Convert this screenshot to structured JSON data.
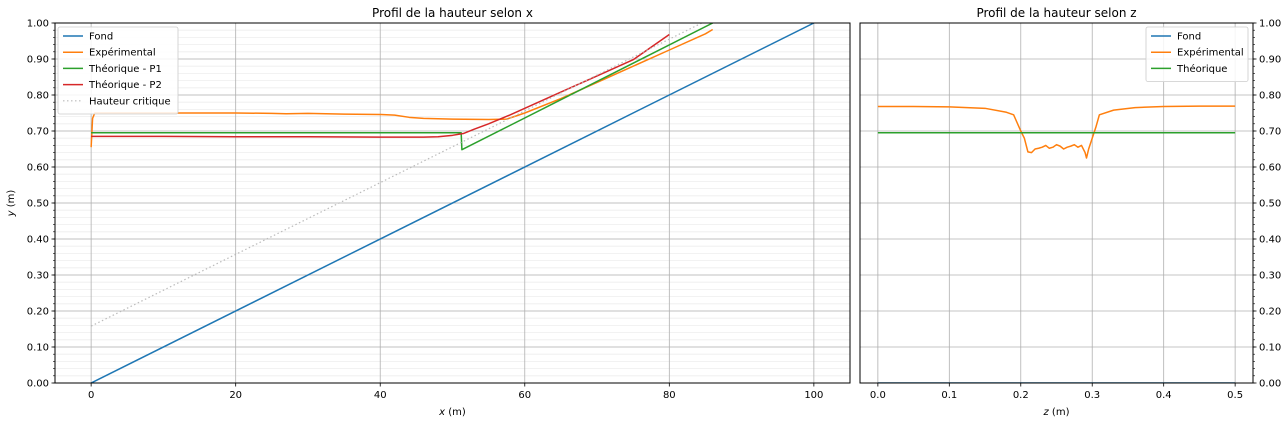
{
  "chart_data": [
    {
      "type": "line",
      "title": "Profil de la hauteur selon x",
      "xlabel": "x (m)",
      "ylabel": "y (m)",
      "xlim": [
        -5,
        105
      ],
      "ylim": [
        0,
        1
      ],
      "x_ticks": [
        0,
        20,
        40,
        60,
        80,
        100
      ],
      "y_ticks": [
        "0.00",
        "0.10",
        "0.20",
        "0.30",
        "0.40",
        "0.50",
        "0.60",
        "0.70",
        "0.80",
        "0.90",
        "1.00"
      ],
      "grid": true,
      "minor_grid": true,
      "legend_position": "top-left",
      "series": [
        {
          "name": "Fond",
          "color": "#1f77b4",
          "style": "solid",
          "points": [
            [
              0,
              0.0
            ],
            [
              100,
              1.0
            ]
          ]
        },
        {
          "name": "Expérimental",
          "color": "#ff7f0e",
          "style": "solid",
          "points": [
            [
              0,
              0.655
            ],
            [
              0.2,
              0.735
            ],
            [
              0.5,
              0.75
            ],
            [
              5,
              0.75
            ],
            [
              10,
              0.75
            ],
            [
              15,
              0.75
            ],
            [
              20,
              0.75
            ],
            [
              25,
              0.749
            ],
            [
              27,
              0.748
            ],
            [
              30,
              0.749
            ],
            [
              35,
              0.747
            ],
            [
              40,
              0.746
            ],
            [
              42,
              0.744
            ],
            [
              44,
              0.738
            ],
            [
              46,
              0.735
            ],
            [
              50,
              0.733
            ],
            [
              55,
              0.732
            ],
            [
              57.5,
              0.733
            ],
            [
              60,
              0.75
            ],
            [
              65,
              0.79
            ],
            [
              70,
              0.835
            ],
            [
              75,
              0.88
            ],
            [
              80,
              0.925
            ],
            [
              85,
              0.97
            ],
            [
              86,
              0.982
            ]
          ]
        },
        {
          "name": "Théorique - P1",
          "color": "#2ca02c",
          "style": "solid",
          "points": [
            [
              0,
              0.695
            ],
            [
              51.2,
              0.695
            ],
            [
              51.3,
              0.648
            ],
            [
              86,
              1.0
            ]
          ]
        },
        {
          "name": "Théorique - P2",
          "color": "#d62728",
          "style": "solid",
          "points": [
            [
              0,
              0.685
            ],
            [
              10,
              0.685
            ],
            [
              20,
              0.684
            ],
            [
              30,
              0.684
            ],
            [
              40,
              0.683
            ],
            [
              46,
              0.683
            ],
            [
              48,
              0.684
            ],
            [
              50,
              0.688
            ],
            [
              51.5,
              0.693
            ],
            [
              53,
              0.705
            ],
            [
              55,
              0.72
            ],
            [
              58,
              0.745
            ],
            [
              60,
              0.763
            ],
            [
              65,
              0.808
            ],
            [
              70,
              0.853
            ],
            [
              75,
              0.898
            ],
            [
              80,
              0.968
            ]
          ]
        },
        {
          "name": "Hauteur critique",
          "color": "#bbbbbb",
          "style": "dotted",
          "points": [
            [
              0,
              0.158
            ],
            [
              84.5,
              1.0
            ]
          ]
        }
      ]
    },
    {
      "type": "line",
      "title": "Profil de la hauteur selon z",
      "xlabel": "z (m)",
      "ylabel": "",
      "xlim": [
        -0.025,
        0.525
      ],
      "ylim": [
        0,
        1
      ],
      "x_ticks": [
        "0.0",
        "0.1",
        "0.2",
        "0.3",
        "0.4",
        "0.5"
      ],
      "y_ticks": [
        "0.00",
        "0.10",
        "0.20",
        "0.30",
        "0.40",
        "0.50",
        "0.60",
        "0.70",
        "0.80",
        "0.90",
        "1.00"
      ],
      "y_ticks_side": "right",
      "grid": true,
      "legend_position": "top-right",
      "series": [
        {
          "name": "Fond",
          "color": "#1f77b4",
          "style": "solid",
          "points": [
            [
              0.0,
              0.0
            ],
            [
              0.5,
              0.0
            ]
          ]
        },
        {
          "name": "Expérimental",
          "color": "#ff7f0e",
          "style": "solid",
          "points": [
            [
              0.0,
              0.768
            ],
            [
              0.05,
              0.768
            ],
            [
              0.1,
              0.767
            ],
            [
              0.15,
              0.763
            ],
            [
              0.18,
              0.752
            ],
            [
              0.19,
              0.745
            ],
            [
              0.2,
              0.7
            ],
            [
              0.205,
              0.68
            ],
            [
              0.21,
              0.642
            ],
            [
              0.215,
              0.64
            ],
            [
              0.22,
              0.65
            ],
            [
              0.225,
              0.652
            ],
            [
              0.23,
              0.655
            ],
            [
              0.235,
              0.66
            ],
            [
              0.24,
              0.652
            ],
            [
              0.245,
              0.655
            ],
            [
              0.25,
              0.662
            ],
            [
              0.255,
              0.658
            ],
            [
              0.26,
              0.65
            ],
            [
              0.265,
              0.655
            ],
            [
              0.27,
              0.658
            ],
            [
              0.275,
              0.662
            ],
            [
              0.28,
              0.655
            ],
            [
              0.285,
              0.66
            ],
            [
              0.29,
              0.64
            ],
            [
              0.292,
              0.625
            ],
            [
              0.295,
              0.65
            ],
            [
              0.3,
              0.68
            ],
            [
              0.305,
              0.71
            ],
            [
              0.31,
              0.745
            ],
            [
              0.33,
              0.758
            ],
            [
              0.36,
              0.765
            ],
            [
              0.4,
              0.768
            ],
            [
              0.45,
              0.769
            ],
            [
              0.5,
              0.769
            ]
          ]
        },
        {
          "name": "Théorique",
          "color": "#2ca02c",
          "style": "solid",
          "points": [
            [
              0.0,
              0.695
            ],
            [
              0.5,
              0.695
            ]
          ]
        }
      ]
    }
  ]
}
